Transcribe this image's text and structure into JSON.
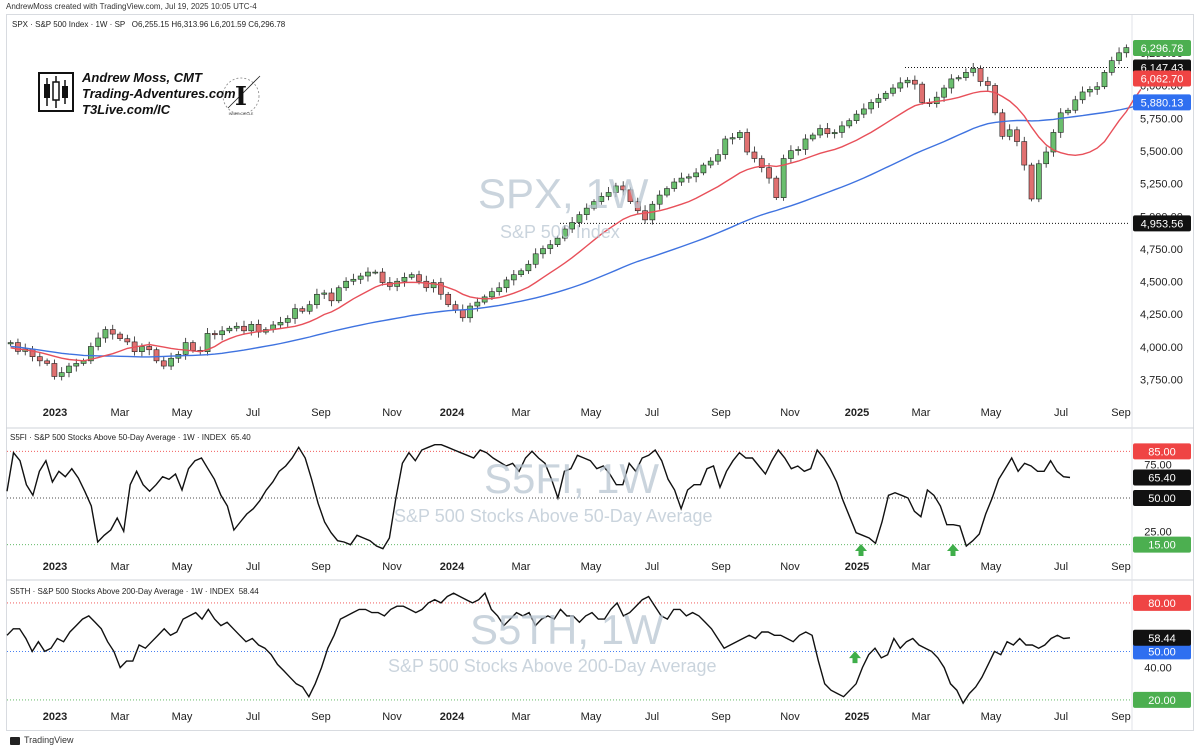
{
  "header": {
    "credit": "AndrewMoss created with TradingView.com, Jul 19, 2025 10:05 UTC-4"
  },
  "footer": {
    "brand": "TradingView"
  },
  "branding": {
    "name": "Andrew Moss, CMT",
    "site": "Trading-Adventures.com",
    "link": "T3Live.com/IC",
    "emblem_caption": "INNER CIRCLE"
  },
  "colors": {
    "up": "#26a69a",
    "up_fill": "#6abe6e",
    "down": "#ef5350",
    "down_fill": "#e07070",
    "sma_short": "#e8505a",
    "sma_long": "#3f73e0",
    "osc_line": "#111111",
    "green_label": "#4caf50",
    "red_label": "#ef4444",
    "blue_label": "#2f6ff0",
    "black_label": "#111111"
  },
  "chart_data": [
    {
      "type": "candlestick",
      "legend": "SPX · S&P 500 Index · 1W · SP",
      "ohlc": {
        "O": "6,255.15",
        "H": "6,313.96",
        "L": "6,201.59",
        "C": "6,296.78"
      },
      "watermark": "SPX, 1W",
      "watermark_sub": "S&P 500 Index",
      "ylim": [
        3600,
        6450
      ],
      "yticks": [
        3750,
        4000,
        4250,
        4500,
        4750,
        5000,
        5250,
        5500,
        5750,
        6000,
        6250
      ],
      "ytick_labels": [
        "3,750.00",
        "4,000.00",
        "4,250.00",
        "4,500.00",
        "4,750.00",
        "5,000.00",
        "5,250.00",
        "5,500.00",
        "5,750.00",
        "6,000.00",
        "6,250.00"
      ],
      "xticks": [
        "2023",
        "Mar",
        "May",
        "Jul",
        "Sep",
        "Nov",
        "2024",
        "Mar",
        "May",
        "Jul",
        "Sep",
        "Nov",
        "2025",
        "Mar",
        "May",
        "Jul",
        "Sep"
      ],
      "close": [
        4040,
        3972,
        3990,
        3932,
        3900,
        3880,
        3780,
        3810,
        3860,
        3880,
        3900,
        4010,
        4075,
        4140,
        4105,
        4070,
        4045,
        3970,
        4010,
        3985,
        3900,
        3860,
        3920,
        3950,
        4040,
        3980,
        3970,
        4110,
        4100,
        4130,
        4150,
        4165,
        4130,
        4180,
        4120,
        4140,
        4175,
        4195,
        4225,
        4300,
        4280,
        4330,
        4410,
        4420,
        4360,
        4460,
        4510,
        4525,
        4550,
        4580,
        4580,
        4500,
        4470,
        4510,
        4540,
        4560,
        4510,
        4460,
        4500,
        4410,
        4330,
        4290,
        4230,
        4320,
        4350,
        4390,
        4430,
        4460,
        4520,
        4560,
        4590,
        4640,
        4720,
        4760,
        4790,
        4840,
        4910,
        4960,
        5020,
        5070,
        5120,
        5160,
        5190,
        5240,
        5210,
        5120,
        5050,
        4980,
        5100,
        5170,
        5220,
        5270,
        5300,
        5310,
        5340,
        5400,
        5430,
        5480,
        5600,
        5610,
        5650,
        5500,
        5450,
        5380,
        5300,
        5150,
        5450,
        5510,
        5520,
        5600,
        5630,
        5680,
        5640,
        5650,
        5700,
        5740,
        5790,
        5830,
        5880,
        5910,
        5950,
        5990,
        6030,
        6050,
        6020,
        5880,
        5870,
        5920,
        5990,
        6060,
        6070,
        6110,
        6140,
        6040,
        6010,
        5800,
        5620,
        5670,
        5580,
        5400,
        5140,
        5410,
        5500,
        5650,
        5800,
        5820,
        5900,
        5960,
        5980,
        6000,
        6110,
        6200,
        6260,
        6300
      ],
      "sma_short": [
        4000,
        3990,
        3985,
        3975,
        3965,
        3950,
        3935,
        3920,
        3910,
        3905,
        3900,
        3912,
        3925,
        3940,
        3955,
        3975,
        3995,
        4005,
        4015,
        4025,
        4015,
        4005,
        3995,
        3988,
        3982,
        3976,
        3970,
        3985,
        4010,
        4045,
        4070,
        4090,
        4105,
        4115,
        4125,
        4132,
        4140,
        4148,
        4156,
        4165,
        4180,
        4200,
        4225,
        4255,
        4275,
        4305,
        4340,
        4375,
        4405,
        4435,
        4465,
        4485,
        4490,
        4495,
        4500,
        4502,
        4500,
        4495,
        4490,
        4480,
        4460,
        4440,
        4410,
        4390,
        4380,
        4375,
        4378,
        4385,
        4400,
        4418,
        4440,
        4465,
        4500,
        4538,
        4575,
        4612,
        4650,
        4690,
        4735,
        4780,
        4825,
        4870,
        4910,
        4948,
        4985,
        5010,
        5025,
        5033,
        5040,
        5050,
        5065,
        5082,
        5100,
        5120,
        5145,
        5175,
        5205,
        5235,
        5270,
        5305,
        5340,
        5365,
        5382,
        5392,
        5395,
        5390,
        5400,
        5415,
        5430,
        5450,
        5470,
        5490,
        5505,
        5520,
        5540,
        5565,
        5590,
        5620,
        5650,
        5685,
        5720,
        5755,
        5790,
        5825,
        5855,
        5870,
        5880,
        5888,
        5895,
        5905,
        5918,
        5935,
        5952,
        5963,
        5966,
        5955,
        5925,
        5890,
        5840,
        5775,
        5690,
        5615,
        5555,
        5515,
        5495,
        5480,
        5475,
        5482,
        5500,
        5530,
        5580,
        5660,
        5740,
        5810,
        5900,
        5980
      ],
      "sma_long": [
        4010,
        4005,
        3998,
        3990,
        3982,
        3974,
        3966,
        3958,
        3952,
        3947,
        3942,
        3940,
        3938,
        3937,
        3936,
        3935,
        3934,
        3932,
        3930,
        3930,
        3932,
        3934,
        3936,
        3938,
        3940,
        3942,
        3944,
        3947,
        3952,
        3958,
        3966,
        3974,
        3982,
        3992,
        4002,
        4012,
        4022,
        4033,
        4045,
        4057,
        4070,
        4083,
        4097,
        4111,
        4125,
        4138,
        4150,
        4162,
        4174,
        4186,
        4197,
        4207,
        4217,
        4227,
        4237,
        4247,
        4256,
        4264,
        4271,
        4278,
        4284,
        4288,
        4291,
        4295,
        4301,
        4308,
        4316,
        4325,
        4335,
        4346,
        4357,
        4369,
        4382,
        4396,
        4411,
        4427,
        4444,
        4462,
        4481,
        4502,
        4524,
        4547,
        4570,
        4594,
        4618,
        4641,
        4662,
        4680,
        4698,
        4717,
        4736,
        4755,
        4775,
        4795,
        4815,
        4836,
        4858,
        4880,
        4904,
        4928,
        4953,
        4976,
        4998,
        5018,
        5036,
        5052,
        5070,
        5088,
        5107,
        5127,
        5148,
        5169,
        5190,
        5211,
        5232,
        5254,
        5277,
        5301,
        5326,
        5352,
        5379,
        5405,
        5432,
        5459,
        5486,
        5511,
        5534,
        5557,
        5580,
        5605,
        5630,
        5655,
        5680,
        5700,
        5717,
        5727,
        5733,
        5738,
        5741,
        5741,
        5738,
        5740,
        5745,
        5750,
        5758,
        5765,
        5772,
        5779,
        5787,
        5795,
        5803,
        5812,
        5822,
        5834,
        5847,
        5860
      ],
      "right_labels": [
        {
          "value": "6,296.78",
          "color": "#4caf50",
          "y": 6296.78
        },
        {
          "value": "6,147.43",
          "color": "#111111",
          "y": 6147.43
        },
        {
          "value": "6,062.70",
          "color": "#ef4444",
          "y": 6062.7
        },
        {
          "value": "5,880.13",
          "color": "#2f6ff0",
          "y": 5880.13
        },
        {
          "value": "4,953.56",
          "color": "#111111",
          "y": 4953.56
        }
      ],
      "hlines": [
        6147.43,
        4953.56
      ]
    },
    {
      "type": "line",
      "legend": "S5FI · S&P 500 Stocks Above 50-Day Average · 1W · INDEX",
      "last": "65.40",
      "watermark": "S5FI, 1W",
      "watermark_sub": "S&P 500 Stocks Above 50-Day Average",
      "ylim": [
        8,
        95
      ],
      "yticks": [
        25,
        50,
        75
      ],
      "ytick_labels": [
        "25.00",
        "50.00",
        "75.00"
      ],
      "xticks": [
        "2023",
        "Mar",
        "May",
        "Jul",
        "Sep",
        "Nov",
        "2024",
        "Mar",
        "May",
        "Jul",
        "Sep",
        "Nov",
        "2025",
        "Mar",
        "May",
        "Jul",
        "Sep"
      ],
      "values": [
        55,
        84,
        78,
        60,
        52,
        70,
        78,
        62,
        70,
        66,
        72,
        65,
        55,
        44,
        17,
        22,
        26,
        35,
        25,
        60,
        70,
        60,
        55,
        60,
        66,
        64,
        68,
        56,
        72,
        78,
        80,
        72,
        64,
        52,
        44,
        26,
        32,
        38,
        42,
        48,
        56,
        62,
        70,
        74,
        80,
        88,
        80,
        64,
        46,
        32,
        24,
        18,
        17,
        15,
        22,
        20,
        18,
        14,
        12,
        20,
        50,
        76,
        84,
        78,
        86,
        88,
        90,
        90,
        88,
        86,
        84,
        82,
        80,
        86,
        84,
        80,
        77,
        74,
        76,
        70,
        80,
        85,
        80,
        76,
        64,
        50,
        70,
        72,
        82,
        80,
        78,
        72,
        74,
        68,
        60,
        60,
        76,
        70,
        80,
        82,
        86,
        78,
        64,
        56,
        42,
        56,
        60,
        60,
        72,
        74,
        58,
        70,
        78,
        84,
        80,
        80,
        74,
        68,
        78,
        86,
        80,
        72,
        74,
        70,
        72,
        86,
        80,
        72,
        62,
        48,
        36,
        24,
        22,
        20,
        16,
        32,
        52,
        54,
        52,
        50,
        40,
        36,
        56,
        52,
        44,
        30,
        30,
        29,
        14,
        18,
        23,
        38,
        50,
        64,
        72,
        80,
        70,
        76,
        74,
        70,
        70,
        78,
        70,
        66,
        65.4
      ],
      "ref_lines": [
        {
          "value": 85,
          "label": "85.00",
          "color": "#ef4444"
        },
        {
          "value": 50,
          "label": "50.00",
          "color": "#111111"
        },
        {
          "value": 15,
          "label": "15.00",
          "color": "#4caf50"
        }
      ],
      "right_label": {
        "value": "65.40",
        "y": 65.4
      },
      "arrows": [
        "2025-01",
        "2025-04"
      ]
    },
    {
      "type": "line",
      "legend": "S5TH · S&P 500 Stocks Above 200-Day Average · 1W · INDEX",
      "last": "58.44",
      "watermark": "S5TH, 1W",
      "watermark_sub": "S&P 500 Stocks Above 200-Day Average",
      "ylim": [
        15,
        88
      ],
      "yticks": [
        40
      ],
      "ytick_labels": [
        "40.00"
      ],
      "xticks": [
        "2023",
        "Mar",
        "May",
        "Jul",
        "Sep",
        "Nov",
        "2024",
        "Mar",
        "May",
        "Jul",
        "Sep",
        "Nov",
        "2025",
        "Mar",
        "May",
        "Jul",
        "Sep"
      ],
      "values": [
        60,
        64,
        64,
        58,
        50,
        56,
        50,
        52,
        58,
        56,
        62,
        66,
        70,
        72,
        68,
        64,
        56,
        50,
        40,
        44,
        44,
        54,
        52,
        56,
        60,
        64,
        60,
        62,
        70,
        72,
        74,
        70,
        76,
        70,
        66,
        68,
        64,
        60,
        56,
        58,
        54,
        52,
        48,
        42,
        38,
        34,
        30,
        28,
        22,
        30,
        40,
        52,
        60,
        70,
        72,
        74,
        76,
        76,
        74,
        74,
        72,
        76,
        78,
        78,
        76,
        74,
        76,
        80,
        82,
        80,
        84,
        86,
        84,
        82,
        80,
        82,
        86,
        76,
        72,
        66,
        70,
        74,
        72,
        74,
        66,
        70,
        72,
        70,
        76,
        72,
        72,
        68,
        72,
        74,
        70,
        70,
        76,
        80,
        72,
        74,
        78,
        82,
        84,
        78,
        72,
        70,
        76,
        76,
        72,
        74,
        72,
        68,
        64,
        58,
        52,
        54,
        56,
        58,
        60,
        58,
        62,
        62,
        60,
        60,
        58,
        56,
        60,
        62,
        60,
        44,
        30,
        26,
        24,
        22,
        26,
        30,
        40,
        48,
        52,
        46,
        48,
        58,
        52,
        56,
        58,
        54,
        52,
        50,
        46,
        40,
        30,
        26,
        18,
        24,
        28,
        34,
        42,
        50,
        48,
        56,
        54,
        58,
        54,
        54,
        52,
        54,
        58,
        60,
        58,
        58.44
      ],
      "ref_lines": [
        {
          "value": 80,
          "label": "80.00",
          "color": "#ef4444"
        },
        {
          "value": 50,
          "label": "50.00",
          "color": "#2f6ff0"
        },
        {
          "value": 20,
          "label": "20.00",
          "color": "#4caf50"
        }
      ],
      "right_label": {
        "value": "58.44",
        "y": 58.44
      },
      "arrows": [
        "2025-01"
      ]
    }
  ]
}
